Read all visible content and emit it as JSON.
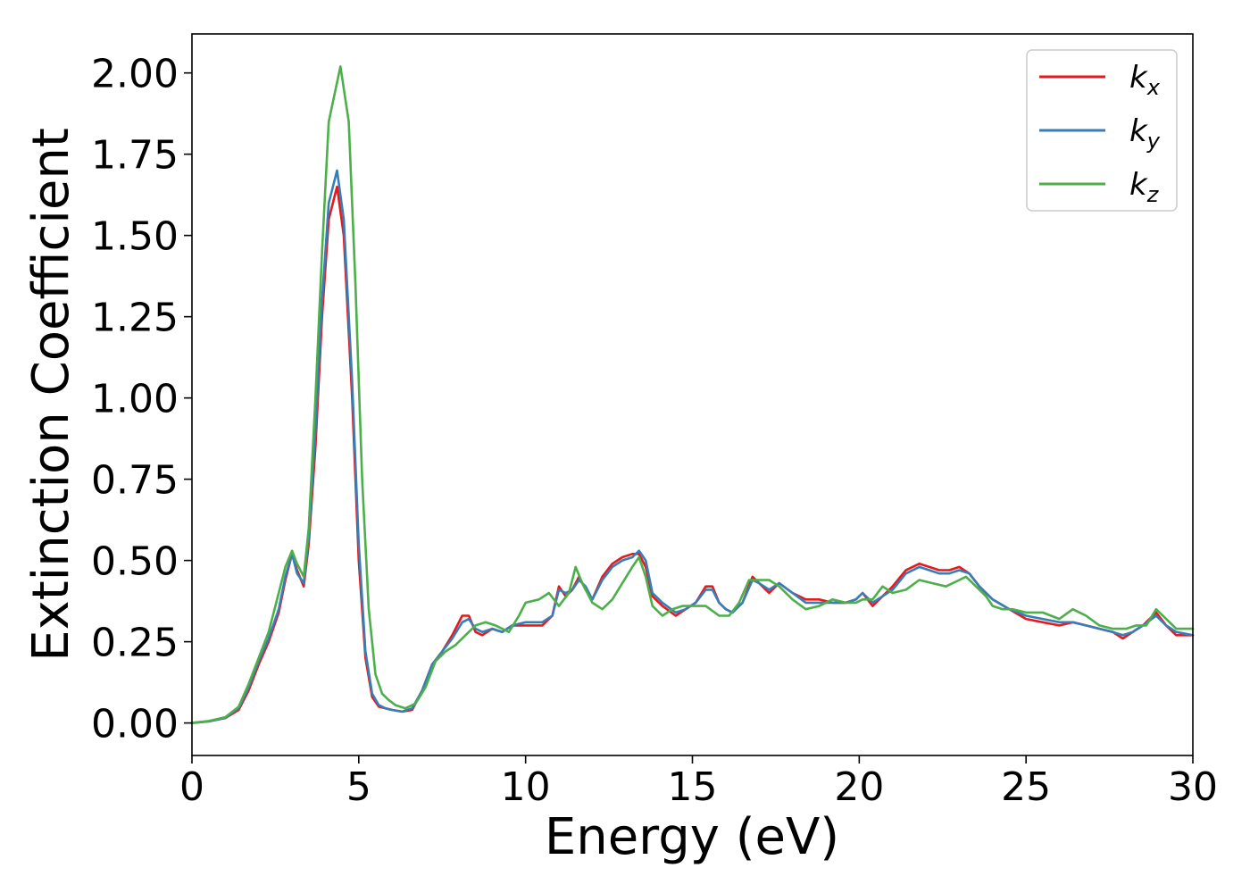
{
  "chart_data": {
    "type": "line",
    "xlabel": "Energy (eV)",
    "ylabel": "Extinction Coefficient",
    "xlim": [
      0,
      30
    ],
    "ylim": [
      -0.1,
      2.12
    ],
    "x_ticks": [
      "0",
      "5",
      "10",
      "15",
      "20",
      "25",
      "30"
    ],
    "y_ticks": [
      "0.00",
      "0.25",
      "0.50",
      "0.75",
      "1.00",
      "1.25",
      "1.50",
      "1.75",
      "2.00"
    ],
    "grid": false,
    "legend_position": "top-right",
    "series": [
      {
        "name": "k",
        "subscript": "x",
        "color": "#e41a1c",
        "x": [
          0,
          0.5,
          1.0,
          1.4,
          1.7,
          2.0,
          2.3,
          2.6,
          2.8,
          3.0,
          3.15,
          3.35,
          3.5,
          3.7,
          3.9,
          4.1,
          4.35,
          4.55,
          4.8,
          5.0,
          5.2,
          5.4,
          5.6,
          5.8,
          6.0,
          6.3,
          6.6,
          6.9,
          7.2,
          7.5,
          7.8,
          8.1,
          8.3,
          8.5,
          8.7,
          9.0,
          9.3,
          9.6,
          10.0,
          10.5,
          10.8,
          11.0,
          11.2,
          11.4,
          11.6,
          11.8,
          12.0,
          12.3,
          12.6,
          12.9,
          13.2,
          13.4,
          13.6,
          13.8,
          14.1,
          14.5,
          14.8,
          15.1,
          15.4,
          15.6,
          15.8,
          16.0,
          16.2,
          16.5,
          16.8,
          17.0,
          17.3,
          17.6,
          18.0,
          18.4,
          18.8,
          19.2,
          19.6,
          19.9,
          20.1,
          20.4,
          20.7,
          21.0,
          21.4,
          21.8,
          22.1,
          22.4,
          22.7,
          23.0,
          23.3,
          23.6,
          24.0,
          24.5,
          25.0,
          25.5,
          26.0,
          26.4,
          26.8,
          27.2,
          27.6,
          27.9,
          28.2,
          28.5,
          28.9,
          29.2,
          29.5,
          30.0
        ],
        "values": [
          0.0,
          0.005,
          0.015,
          0.04,
          0.1,
          0.18,
          0.25,
          0.34,
          0.44,
          0.52,
          0.47,
          0.42,
          0.55,
          0.85,
          1.25,
          1.55,
          1.65,
          1.5,
          1.0,
          0.5,
          0.2,
          0.08,
          0.05,
          0.045,
          0.04,
          0.035,
          0.04,
          0.1,
          0.18,
          0.22,
          0.27,
          0.33,
          0.33,
          0.28,
          0.27,
          0.29,
          0.28,
          0.3,
          0.3,
          0.3,
          0.33,
          0.42,
          0.39,
          0.41,
          0.45,
          0.41,
          0.38,
          0.45,
          0.49,
          0.51,
          0.52,
          0.52,
          0.48,
          0.39,
          0.36,
          0.33,
          0.35,
          0.37,
          0.42,
          0.42,
          0.37,
          0.35,
          0.34,
          0.37,
          0.45,
          0.43,
          0.4,
          0.43,
          0.4,
          0.38,
          0.38,
          0.37,
          0.37,
          0.38,
          0.4,
          0.36,
          0.39,
          0.42,
          0.47,
          0.49,
          0.48,
          0.47,
          0.47,
          0.48,
          0.46,
          0.42,
          0.38,
          0.35,
          0.32,
          0.31,
          0.3,
          0.31,
          0.3,
          0.29,
          0.28,
          0.26,
          0.28,
          0.3,
          0.34,
          0.3,
          0.27,
          0.27
        ]
      },
      {
        "name": "k",
        "subscript": "y",
        "color": "#377eb8",
        "x": [
          0,
          0.5,
          1.0,
          1.4,
          1.7,
          2.0,
          2.3,
          2.6,
          2.8,
          3.0,
          3.15,
          3.35,
          3.5,
          3.7,
          3.9,
          4.1,
          4.35,
          4.55,
          4.8,
          5.0,
          5.2,
          5.4,
          5.6,
          5.8,
          6.0,
          6.3,
          6.6,
          6.9,
          7.2,
          7.5,
          7.8,
          8.1,
          8.3,
          8.5,
          8.7,
          9.0,
          9.3,
          9.6,
          10.0,
          10.5,
          10.8,
          11.0,
          11.2,
          11.4,
          11.6,
          11.8,
          12.0,
          12.3,
          12.6,
          12.9,
          13.2,
          13.4,
          13.6,
          13.8,
          14.1,
          14.5,
          14.8,
          15.1,
          15.4,
          15.6,
          15.8,
          16.0,
          16.2,
          16.5,
          16.8,
          17.0,
          17.3,
          17.6,
          18.0,
          18.4,
          18.8,
          19.2,
          19.6,
          19.9,
          20.1,
          20.4,
          20.7,
          21.0,
          21.4,
          21.8,
          22.1,
          22.4,
          22.7,
          23.0,
          23.3,
          23.6,
          24.0,
          24.5,
          25.0,
          25.5,
          26.0,
          26.4,
          26.8,
          27.2,
          27.6,
          27.9,
          28.2,
          28.5,
          28.9,
          29.2,
          29.5,
          30.0
        ],
        "values": [
          0.0,
          0.005,
          0.016,
          0.045,
          0.11,
          0.19,
          0.26,
          0.35,
          0.45,
          0.52,
          0.46,
          0.43,
          0.57,
          0.9,
          1.3,
          1.6,
          1.7,
          1.55,
          1.05,
          0.55,
          0.22,
          0.09,
          0.055,
          0.045,
          0.04,
          0.035,
          0.045,
          0.1,
          0.18,
          0.22,
          0.26,
          0.31,
          0.32,
          0.29,
          0.28,
          0.29,
          0.28,
          0.3,
          0.31,
          0.31,
          0.33,
          0.41,
          0.4,
          0.41,
          0.44,
          0.42,
          0.38,
          0.44,
          0.48,
          0.5,
          0.51,
          0.53,
          0.5,
          0.4,
          0.37,
          0.34,
          0.35,
          0.37,
          0.41,
          0.41,
          0.37,
          0.35,
          0.34,
          0.37,
          0.44,
          0.43,
          0.41,
          0.43,
          0.4,
          0.37,
          0.37,
          0.37,
          0.37,
          0.38,
          0.4,
          0.37,
          0.39,
          0.41,
          0.46,
          0.48,
          0.47,
          0.46,
          0.46,
          0.47,
          0.46,
          0.42,
          0.38,
          0.35,
          0.33,
          0.32,
          0.31,
          0.31,
          0.3,
          0.29,
          0.28,
          0.27,
          0.28,
          0.3,
          0.33,
          0.3,
          0.28,
          0.27
        ]
      },
      {
        "name": "k",
        "subscript": "z",
        "color": "#4daf4a",
        "x": [
          0,
          0.5,
          1.0,
          1.4,
          1.7,
          2.0,
          2.3,
          2.6,
          2.8,
          3.0,
          3.15,
          3.35,
          3.5,
          3.7,
          3.9,
          4.1,
          4.45,
          4.7,
          4.9,
          5.1,
          5.3,
          5.5,
          5.7,
          5.9,
          6.1,
          6.4,
          6.7,
          7.0,
          7.3,
          7.6,
          7.9,
          8.2,
          8.5,
          8.8,
          9.1,
          9.5,
          9.8,
          10.0,
          10.4,
          10.7,
          11.0,
          11.3,
          11.5,
          11.7,
          12.0,
          12.3,
          12.6,
          12.9,
          13.2,
          13.4,
          13.6,
          13.8,
          14.1,
          14.4,
          14.7,
          15.0,
          15.4,
          15.8,
          16.1,
          16.4,
          16.7,
          17.0,
          17.3,
          17.6,
          18.0,
          18.4,
          18.8,
          19.2,
          19.6,
          19.9,
          20.1,
          20.4,
          20.7,
          21.0,
          21.4,
          21.8,
          22.2,
          22.6,
          23.0,
          23.2,
          23.5,
          23.8,
          24.0,
          24.3,
          24.6,
          25.0,
          25.5,
          26.0,
          26.4,
          26.8,
          27.2,
          27.6,
          28.0,
          28.3,
          28.6,
          28.9,
          29.2,
          29.5,
          30.0
        ],
        "values": [
          0.0,
          0.006,
          0.018,
          0.05,
          0.12,
          0.2,
          0.28,
          0.4,
          0.48,
          0.53,
          0.49,
          0.45,
          0.6,
          1.0,
          1.45,
          1.85,
          2.02,
          1.85,
          1.35,
          0.75,
          0.35,
          0.15,
          0.09,
          0.07,
          0.055,
          0.045,
          0.06,
          0.11,
          0.19,
          0.22,
          0.24,
          0.27,
          0.3,
          0.31,
          0.3,
          0.28,
          0.33,
          0.37,
          0.38,
          0.4,
          0.36,
          0.4,
          0.48,
          0.43,
          0.37,
          0.35,
          0.38,
          0.43,
          0.48,
          0.51,
          0.45,
          0.36,
          0.33,
          0.35,
          0.36,
          0.36,
          0.36,
          0.33,
          0.33,
          0.37,
          0.44,
          0.44,
          0.44,
          0.42,
          0.38,
          0.35,
          0.36,
          0.38,
          0.37,
          0.37,
          0.38,
          0.38,
          0.42,
          0.4,
          0.41,
          0.44,
          0.43,
          0.42,
          0.44,
          0.45,
          0.42,
          0.39,
          0.36,
          0.35,
          0.35,
          0.34,
          0.34,
          0.32,
          0.35,
          0.33,
          0.3,
          0.29,
          0.29,
          0.3,
          0.3,
          0.35,
          0.32,
          0.29,
          0.29
        ]
      }
    ]
  }
}
